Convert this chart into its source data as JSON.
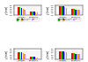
{
  "bar_colors": [
    "#ff0000",
    "#00cc00",
    "#0000ff",
    "#ffaa00",
    "#cc88ff"
  ],
  "subplot_data": [
    {
      "title": "a",
      "ylabel": "y [mm]",
      "ylim": [
        0,
        2.5
      ],
      "yticks": [
        0.0,
        0.5,
        1.0,
        1.5,
        2.0,
        2.5
      ],
      "group_labels": [
        "Isotropic",
        "Kinematic"
      ],
      "values": [
        [
          2.0,
          2.1,
          1.9,
          1.6,
          1.3
        ],
        [
          0.9,
          1.0,
          0.85,
          0.75,
          0.65
        ]
      ],
      "legend_labels": [
        "Swift",
        "Voce",
        "Hockett-Sherby",
        "Swift+Voce",
        "Swift+H-S"
      ]
    },
    {
      "title": "b",
      "ylabel": "y [mm]",
      "ylim": [
        0,
        2.5
      ],
      "yticks": [
        0.0,
        0.5,
        1.0,
        1.5,
        2.0,
        2.5
      ],
      "group_labels": [
        "Isotropic",
        "Kinematic"
      ],
      "values": [
        [
          2.2,
          2.2,
          2.2,
          2.0,
          1.8
        ],
        [
          1.5,
          1.55,
          1.45,
          1.4,
          1.3
        ]
      ],
      "legend_labels": [
        "Swift",
        "Voce",
        "Hockett-Sherby",
        "Swift+Voce",
        "Swift+H-S"
      ]
    },
    {
      "title": "c",
      "ylabel": "y [mm]",
      "ylim": [
        0,
        2.5
      ],
      "yticks": [
        0.0,
        0.5,
        1.0,
        1.5,
        2.0,
        2.5
      ],
      "group_labels": [
        "Isotropic",
        "Kinematic"
      ],
      "values": [
        [
          1.7,
          1.8,
          1.6,
          1.5,
          1.3
        ],
        [
          0.55,
          0.6,
          0.5,
          0.45,
          0.4
        ]
      ],
      "legend_labels": [
        "Swift",
        "Voce",
        "Hockett-Sherby",
        "Swift+Voce",
        "Swift+H-S"
      ]
    },
    {
      "title": "d",
      "ylabel": "y [mm]",
      "ylim": [
        0,
        2.5
      ],
      "yticks": [
        0.0,
        0.5,
        1.0,
        1.5,
        2.0,
        2.5
      ],
      "group_labels": [
        "Isotropic",
        "Kinematic"
      ],
      "values": [
        [
          1.9,
          1.9,
          1.9,
          1.75,
          1.6
        ],
        [
          1.4,
          1.45,
          1.35,
          1.3,
          1.2
        ]
      ],
      "legend_labels": [
        "Swift",
        "Voce",
        "Hockett-Sherby",
        "Swift+Voce",
        "Swift+H-S"
      ]
    }
  ],
  "background_color": "#ffffff",
  "axes_facecolor": "#ffffff"
}
